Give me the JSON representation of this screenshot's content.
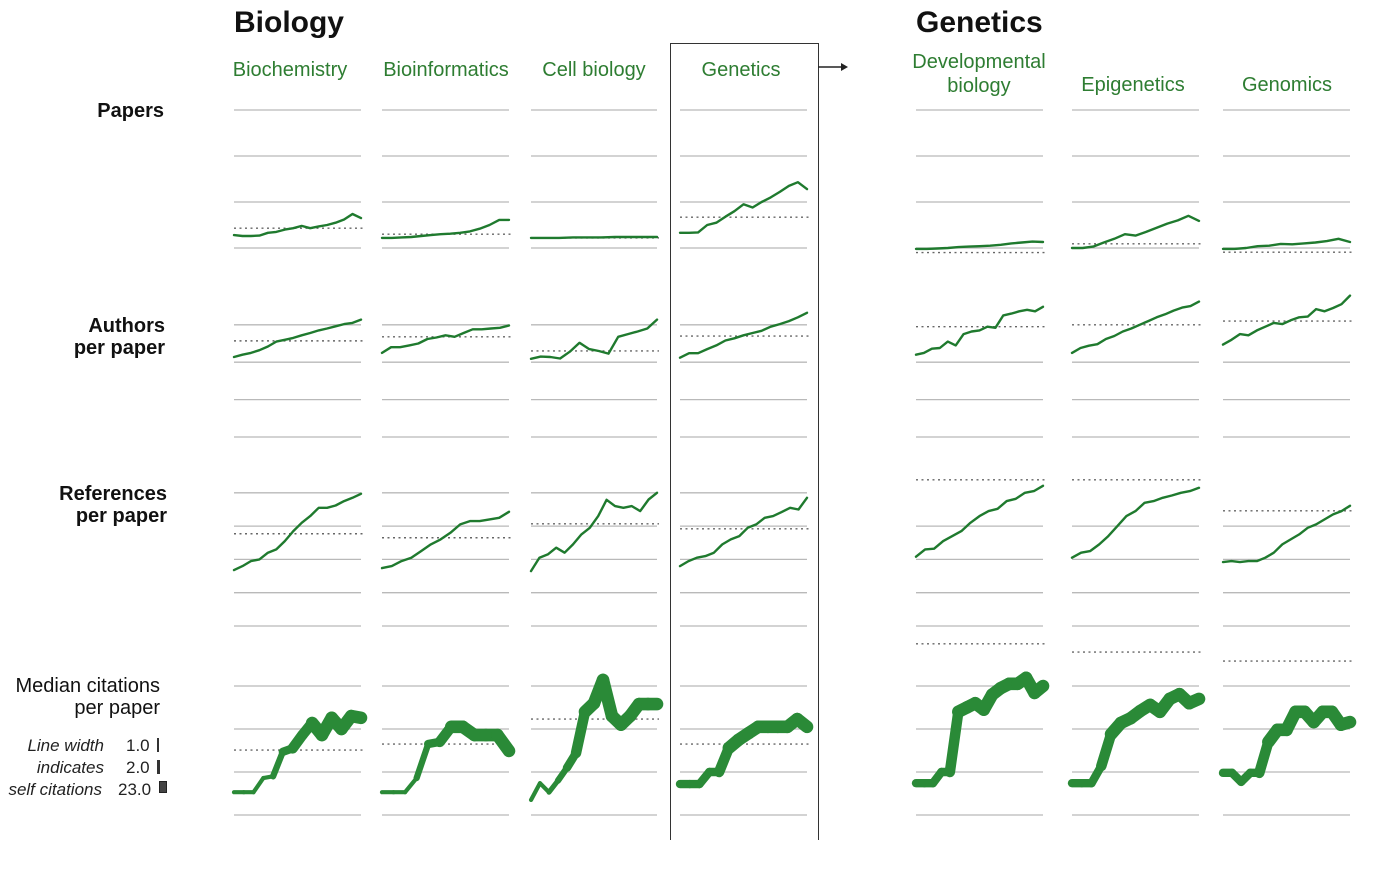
{
  "colors": {
    "series": "#1f7a2e",
    "label_green": "#2e7d32",
    "grid": "#b9b9b9",
    "reference": "#666666",
    "box": "#333333"
  },
  "groups": [
    {
      "title": "Biology"
    },
    {
      "title": "Genetics"
    }
  ],
  "legend": {
    "lines": [
      "Line width",
      "indicates",
      "self citations"
    ],
    "values": [
      "1.0",
      "2.0",
      "23.0"
    ]
  },
  "chart_data": {
    "type": "line",
    "title": "",
    "description_units": "unitless; y in gridline units (0 = lowest gridline)",
    "columns": [
      {
        "label": "Biochemistry",
        "group": "Biology"
      },
      {
        "label": "Bioinformatics",
        "group": "Biology"
      },
      {
        "label": "Cell biology",
        "group": "Biology"
      },
      {
        "label": "Genetics",
        "group": "Biology",
        "highlighted": true
      },
      {
        "label_lines": [
          "Developmental",
          "biology"
        ],
        "label": "Developmental biology",
        "group": "Genetics"
      },
      {
        "label": "Epigenetics",
        "group": "Genetics"
      },
      {
        "label": "Genomics",
        "group": "Genetics"
      }
    ],
    "rows": [
      {
        "label_lines": [
          "Papers"
        ],
        "grid": true,
        "gridlines": [
          0,
          1,
          2,
          3
        ],
        "series": [
          {
            "values": [
              0.28,
              0.26,
              0.26,
              0.27,
              0.33,
              0.35,
              0.4,
              0.43,
              0.48,
              0.43,
              0.47,
              0.5,
              0.55,
              0.62,
              0.74,
              0.65
            ],
            "reference": 0.43
          },
          {
            "values": [
              0.22,
              0.22,
              0.23,
              0.24,
              0.26,
              0.28,
              0.3,
              0.31,
              0.33,
              0.36,
              0.42,
              0.5,
              0.61,
              0.61
            ],
            "reference": 0.3
          },
          {
            "values": [
              0.22,
              0.22,
              0.22,
              0.23,
              0.23,
              0.23,
              0.24,
              0.24,
              0.24,
              0.24
            ],
            "reference": 0.22
          },
          {
            "values": [
              0.33,
              0.33,
              0.34,
              0.5,
              0.55,
              0.68,
              0.8,
              0.95,
              0.88,
              1.0,
              1.1,
              1.22,
              1.35,
              1.43,
              1.28
            ],
            "reference": 0.67
          },
          {
            "values": [
              -0.02,
              -0.02,
              -0.01,
              0.0,
              0.02,
              0.03,
              0.04,
              0.05,
              0.07,
              0.1,
              0.12,
              0.14,
              0.13
            ],
            "reference": -0.1
          },
          {
            "values": [
              0.0,
              0.0,
              0.03,
              0.12,
              0.2,
              0.3,
              0.27,
              0.35,
              0.44,
              0.53,
              0.6,
              0.7,
              0.59
            ],
            "reference": 0.09
          },
          {
            "values": [
              -0.02,
              -0.02,
              0.0,
              0.04,
              0.05,
              0.09,
              0.08,
              0.1,
              0.12,
              0.15,
              0.2,
              0.13
            ],
            "reference": -0.09
          }
        ]
      },
      {
        "label_lines": [
          "Authors",
          "per paper"
        ],
        "gridlines": [
          0,
          1,
          2,
          3
        ],
        "right_group_gridlines": [
          0,
          1,
          2
        ],
        "series": [
          {
            "values": [
              2.14,
              2.2,
              2.25,
              2.32,
              2.42,
              2.55,
              2.6,
              2.65,
              2.72,
              2.78,
              2.85,
              2.9,
              2.96,
              3.02,
              3.05,
              3.14
            ],
            "reference": 2.57
          },
          {
            "values": [
              2.25,
              2.4,
              2.4,
              2.45,
              2.5,
              2.62,
              2.66,
              2.72,
              2.68,
              2.78,
              2.88,
              2.88,
              2.9,
              2.92,
              2.98
            ],
            "reference": 2.68
          },
          {
            "values": [
              2.09,
              2.15,
              2.14,
              2.1,
              2.28,
              2.52,
              2.35,
              2.3,
              2.23,
              2.68,
              2.75,
              2.82,
              2.9,
              3.14
            ],
            "reference": 2.3
          },
          {
            "values": [
              2.12,
              2.24,
              2.24,
              2.35,
              2.45,
              2.58,
              2.64,
              2.72,
              2.78,
              2.84,
              2.95,
              3.02,
              3.1,
              3.2,
              3.32
            ],
            "reference": 2.7
          },
          {
            "values": [
              2.2,
              2.25,
              2.36,
              2.38,
              2.55,
              2.45,
              2.75,
              2.82,
              2.85,
              2.95,
              2.92,
              3.25,
              3.3,
              3.36,
              3.4,
              3.36,
              3.48
            ],
            "reference": 2.95
          },
          {
            "values": [
              2.25,
              2.38,
              2.44,
              2.48,
              2.62,
              2.7,
              2.82,
              2.9,
              3.0,
              3.1,
              3.2,
              3.28,
              3.38,
              3.46,
              3.5,
              3.62
            ],
            "reference": 3.0
          },
          {
            "values": [
              2.47,
              2.6,
              2.75,
              2.72,
              2.85,
              2.95,
              3.05,
              3.02,
              3.12,
              3.2,
              3.22,
              3.42,
              3.36,
              3.45,
              3.55,
              3.78
            ],
            "reference": 3.1
          }
        ]
      },
      {
        "label_lines": [
          "References",
          "per paper"
        ],
        "gridlines": [
          0,
          1,
          2,
          3,
          4
        ],
        "right_group_gridlines": [
          0,
          1,
          2,
          3
        ],
        "series": [
          {
            "values": [
              1.68,
              1.8,
              1.95,
              2.0,
              2.2,
              2.3,
              2.55,
              2.85,
              3.1,
              3.3,
              3.55,
              3.55,
              3.62,
              3.75,
              3.85,
              3.97
            ],
            "reference": 2.77
          },
          {
            "values": [
              1.74,
              1.8,
              1.95,
              2.05,
              2.25,
              2.45,
              2.6,
              2.8,
              3.05,
              3.15,
              3.15,
              3.2,
              3.25,
              3.43
            ],
            "reference": 2.65
          },
          {
            "values": [
              1.65,
              2.05,
              2.15,
              2.35,
              2.2,
              2.45,
              2.75,
              2.95,
              3.3,
              3.79,
              3.6,
              3.55,
              3.6,
              3.45,
              3.8,
              4.0
            ],
            "reference": 3.07
          },
          {
            "values": [
              1.8,
              1.95,
              2.05,
              2.1,
              2.2,
              2.45,
              2.6,
              2.7,
              2.95,
              3.05,
              3.25,
              3.3,
              3.42,
              3.55,
              3.5,
              3.85
            ],
            "reference": 2.92
          },
          {
            "values": [
              2.08,
              2.3,
              2.32,
              2.55,
              2.7,
              2.85,
              3.1,
              3.3,
              3.45,
              3.52,
              3.75,
              3.82,
              4.0,
              4.05,
              4.21
            ],
            "reference": 4.39
          },
          {
            "values": [
              2.05,
              2.2,
              2.25,
              2.45,
              2.7,
              3.0,
              3.3,
              3.45,
              3.7,
              3.75,
              3.85,
              3.92,
              4.0,
              4.05,
              4.15
            ],
            "reference": 4.39
          },
          {
            "values": [
              1.92,
              1.95,
              1.92,
              1.95,
              1.95,
              2.05,
              2.2,
              2.45,
              2.6,
              2.75,
              2.95,
              3.05,
              3.2,
              3.35,
              3.45,
              3.61
            ],
            "reference": 3.46
          }
        ]
      },
      {
        "label_lines": [
          "Median citations",
          "per paper"
        ],
        "gridlines": [
          0,
          1,
          2,
          3
        ],
        "series": [
          {
            "values": [
              0.53,
              0.53,
              0.53,
              0.86,
              0.9,
              1.47,
              1.55,
              1.86,
              2.14,
              1.86,
              2.26,
              2.0,
              2.3,
              2.26
            ],
            "reference": 1.51,
            "width": [
              1.0,
              1.0,
              1.0,
              1.0,
              1.5,
              2.0,
              2.5,
              2.5,
              3.0,
              3.0,
              3.0,
              3.0,
              3.0,
              3.0
            ]
          },
          {
            "values": [
              0.53,
              0.53,
              0.53,
              0.86,
              1.65,
              1.7,
              2.05,
              2.05,
              1.86,
              1.86,
              1.86,
              1.49
            ],
            "reference": 1.65,
            "width": [
              1.0,
              1.0,
              1.0,
              1.5,
              2.0,
              2.5,
              3.0,
              3.0,
              3.0,
              3.0,
              3.0,
              3.0
            ]
          },
          {
            "values": [
              0.35,
              0.74,
              0.53,
              0.8,
              1.1,
              1.44,
              2.4,
              2.6,
              3.14,
              2.3,
              2.1,
              2.3,
              2.58,
              2.58,
              2.58
            ],
            "reference": 2.23,
            "width": [
              1.0,
              1.0,
              1.2,
              1.5,
              2.0,
              2.5,
              3.0,
              3.0,
              3.0,
              3.0,
              3.0,
              3.0,
              3.0,
              3.0,
              3.0
            ]
          },
          {
            "values": [
              0.72,
              0.72,
              0.72,
              1.0,
              1.0,
              1.56,
              1.75,
              1.9,
              2.05,
              2.05,
              2.05,
              2.05,
              2.23,
              2.05
            ],
            "reference": 1.65,
            "width": [
              2.0,
              2.0,
              2.0,
              2.0,
              2.5,
              3.0,
              3.0,
              3.0,
              3.0,
              3.0,
              3.0,
              3.0,
              3.0,
              3.0
            ]
          },
          {
            "values": [
              0.74,
              0.74,
              0.74,
              1.0,
              1.0,
              2.4,
              2.5,
              2.6,
              2.45,
              2.8,
              2.95,
              3.05,
              3.05,
              3.19,
              2.84,
              3.0
            ],
            "reference": 3.98,
            "width": [
              2.0,
              2.0,
              2.0,
              2.0,
              2.5,
              3.0,
              3.0,
              3.0,
              3.0,
              3.0,
              3.0,
              3.0,
              3.0,
              3.0,
              3.0,
              3.0
            ]
          },
          {
            "values": [
              0.74,
              0.74,
              0.74,
              1.14,
              1.88,
              2.14,
              2.25,
              2.42,
              2.56,
              2.4,
              2.7,
              2.81,
              2.6,
              2.7
            ],
            "reference": 3.79,
            "width": [
              2.0,
              2.0,
              2.0,
              2.5,
              3.0,
              3.0,
              3.0,
              3.0,
              3.0,
              3.0,
              3.0,
              3.0,
              3.0,
              3.0
            ]
          },
          {
            "values": [
              0.98,
              0.98,
              0.77,
              0.98,
              0.98,
              1.7,
              1.98,
              1.98,
              2.4,
              2.4,
              2.16,
              2.4,
              2.4,
              2.1,
              2.16
            ],
            "reference": 3.58,
            "width": [
              2.0,
              2.0,
              2.0,
              2.0,
              2.5,
              3.0,
              3.0,
              3.0,
              3.0,
              3.0,
              3.0,
              3.0,
              3.0,
              3.0,
              3.0
            ]
          }
        ]
      }
    ]
  }
}
